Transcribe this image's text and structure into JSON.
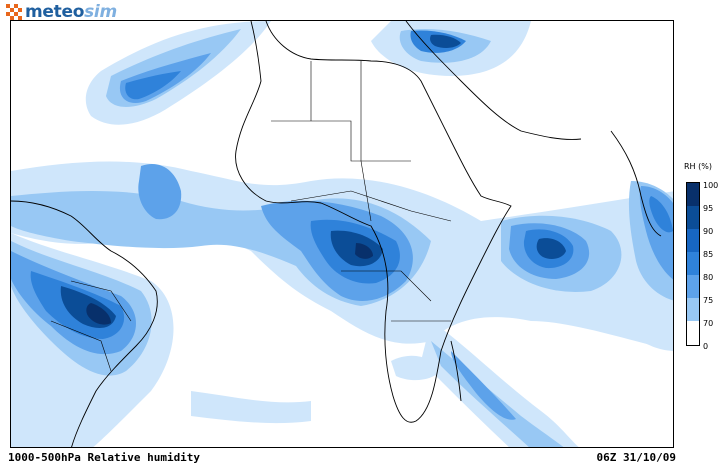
{
  "brand": {
    "name_part1": "meteo",
    "name_part2": "sim",
    "logo_icon": "checker-pinwheel-icon",
    "colors": {
      "primary": "#1f5f9f",
      "secondary": "#7fb0e0",
      "mark_orange": "#e8671c"
    }
  },
  "map": {
    "region": "Atlantic, Africa and western Indian Ocean",
    "variable_label": "1000-500hPa Relative humidity",
    "timestamp_label": "06Z 31/10/09"
  },
  "legend": {
    "title": "RH (%)",
    "ticks": [
      "100",
      "95",
      "90",
      "85",
      "80",
      "75",
      "70",
      "0"
    ],
    "colors": [
      "#08306b",
      "#0b4d97",
      "#1766c2",
      "#2f82da",
      "#5da2ea",
      "#98c8f4",
      "#cfe6fb",
      "#ffffff"
    ]
  }
}
